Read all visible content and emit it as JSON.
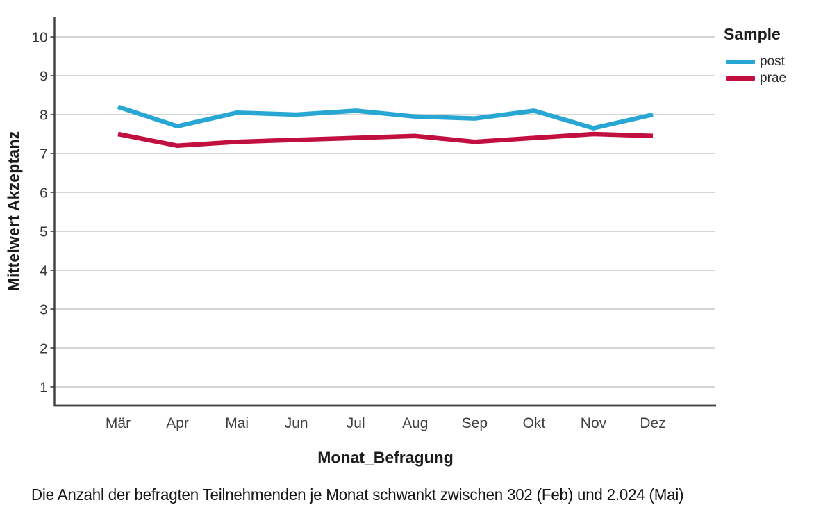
{
  "chart_data": {
    "type": "line",
    "categories": [
      "Mär",
      "Apr",
      "Mai",
      "Jun",
      "Jul",
      "Aug",
      "Sep",
      "Okt",
      "Nov",
      "Dez"
    ],
    "series": [
      {
        "name": "post",
        "color": "#29a7d4",
        "values": [
          8.2,
          7.7,
          8.05,
          8.0,
          8.1,
          7.95,
          7.9,
          8.1,
          7.65,
          8.0
        ]
      },
      {
        "name": "prae",
        "color": "#c10f3f",
        "values": [
          7.5,
          7.2,
          7.3,
          7.35,
          7.4,
          7.45,
          7.3,
          7.4,
          7.5,
          7.45
        ]
      }
    ],
    "xlabel": "Monat_Befragung",
    "ylabel": "Mittelwert Akzeptanz",
    "ylim": [
      0.5,
      10.5
    ],
    "yticks": [
      1,
      2,
      3,
      4,
      5,
      6,
      7,
      8,
      9,
      10
    ],
    "grid": true,
    "legend": {
      "title": "Sample",
      "position": "top-right"
    },
    "colors": {
      "grid": "#c9c9c9",
      "axis": "#3d3d3d",
      "tick_label": "#383838"
    }
  },
  "caption": "Die Anzahl der befragten Teilnehmenden je Monat schwankt zwischen 302 (Feb) und 2.024 (Mai)"
}
